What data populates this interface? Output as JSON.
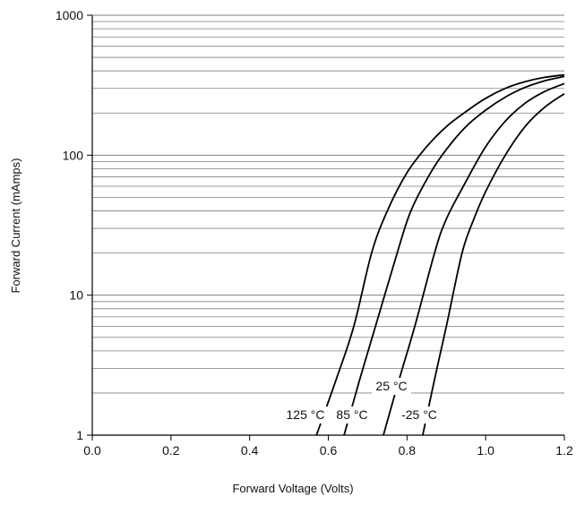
{
  "chart_data": {
    "type": "line",
    "title": "",
    "xlabel": "Forward Voltage (Volts)",
    "ylabel": "Forward Current (mAmps)",
    "xlim": [
      0.0,
      1.2
    ],
    "ylim": [
      1,
      1000
    ],
    "y_scale": "log",
    "x_ticks": [
      "0.0",
      "0.2",
      "0.4",
      "0.6",
      "0.8",
      "1.0",
      "1.2"
    ],
    "y_ticks": [
      "1",
      "10",
      "100",
      "1000"
    ],
    "grid": "horizontal minor lines",
    "line_color": "#000000",
    "grid_color": "#7f7f7f",
    "series": [
      {
        "name": "125 °C",
        "points": [
          [
            0.57,
            1
          ],
          [
            0.62,
            2.5
          ],
          [
            0.665,
            6
          ],
          [
            0.71,
            20
          ],
          [
            0.75,
            40
          ],
          [
            0.8,
            75
          ],
          [
            0.85,
            115
          ],
          [
            0.9,
            160
          ],
          [
            0.95,
            205
          ],
          [
            1.0,
            255
          ],
          [
            1.05,
            300
          ],
          [
            1.1,
            335
          ],
          [
            1.15,
            360
          ],
          [
            1.2,
            375
          ]
        ]
      },
      {
        "name": "85 °C",
        "points": [
          [
            0.64,
            1
          ],
          [
            0.68,
            2.5
          ],
          [
            0.72,
            6
          ],
          [
            0.775,
            20
          ],
          [
            0.81,
            40
          ],
          [
            0.86,
            75
          ],
          [
            0.9,
            110
          ],
          [
            0.95,
            160
          ],
          [
            1.0,
            210
          ],
          [
            1.05,
            260
          ],
          [
            1.1,
            305
          ],
          [
            1.15,
            340
          ],
          [
            1.2,
            365
          ]
        ]
      },
      {
        "name": "25 °C",
        "points": [
          [
            0.74,
            1
          ],
          [
            0.78,
            2.5
          ],
          [
            0.82,
            6
          ],
          [
            0.87,
            20
          ],
          [
            0.9,
            35
          ],
          [
            0.95,
            65
          ],
          [
            1.0,
            115
          ],
          [
            1.05,
            175
          ],
          [
            1.1,
            235
          ],
          [
            1.15,
            285
          ],
          [
            1.2,
            325
          ]
        ]
      },
      {
        "name": "-25 °C",
        "points": [
          [
            0.84,
            1
          ],
          [
            0.87,
            2.5
          ],
          [
            0.9,
            6
          ],
          [
            0.94,
            20
          ],
          [
            0.97,
            35
          ],
          [
            1.0,
            55
          ],
          [
            1.05,
            100
          ],
          [
            1.1,
            160
          ],
          [
            1.15,
            220
          ],
          [
            1.2,
            275
          ]
        ]
      }
    ]
  }
}
